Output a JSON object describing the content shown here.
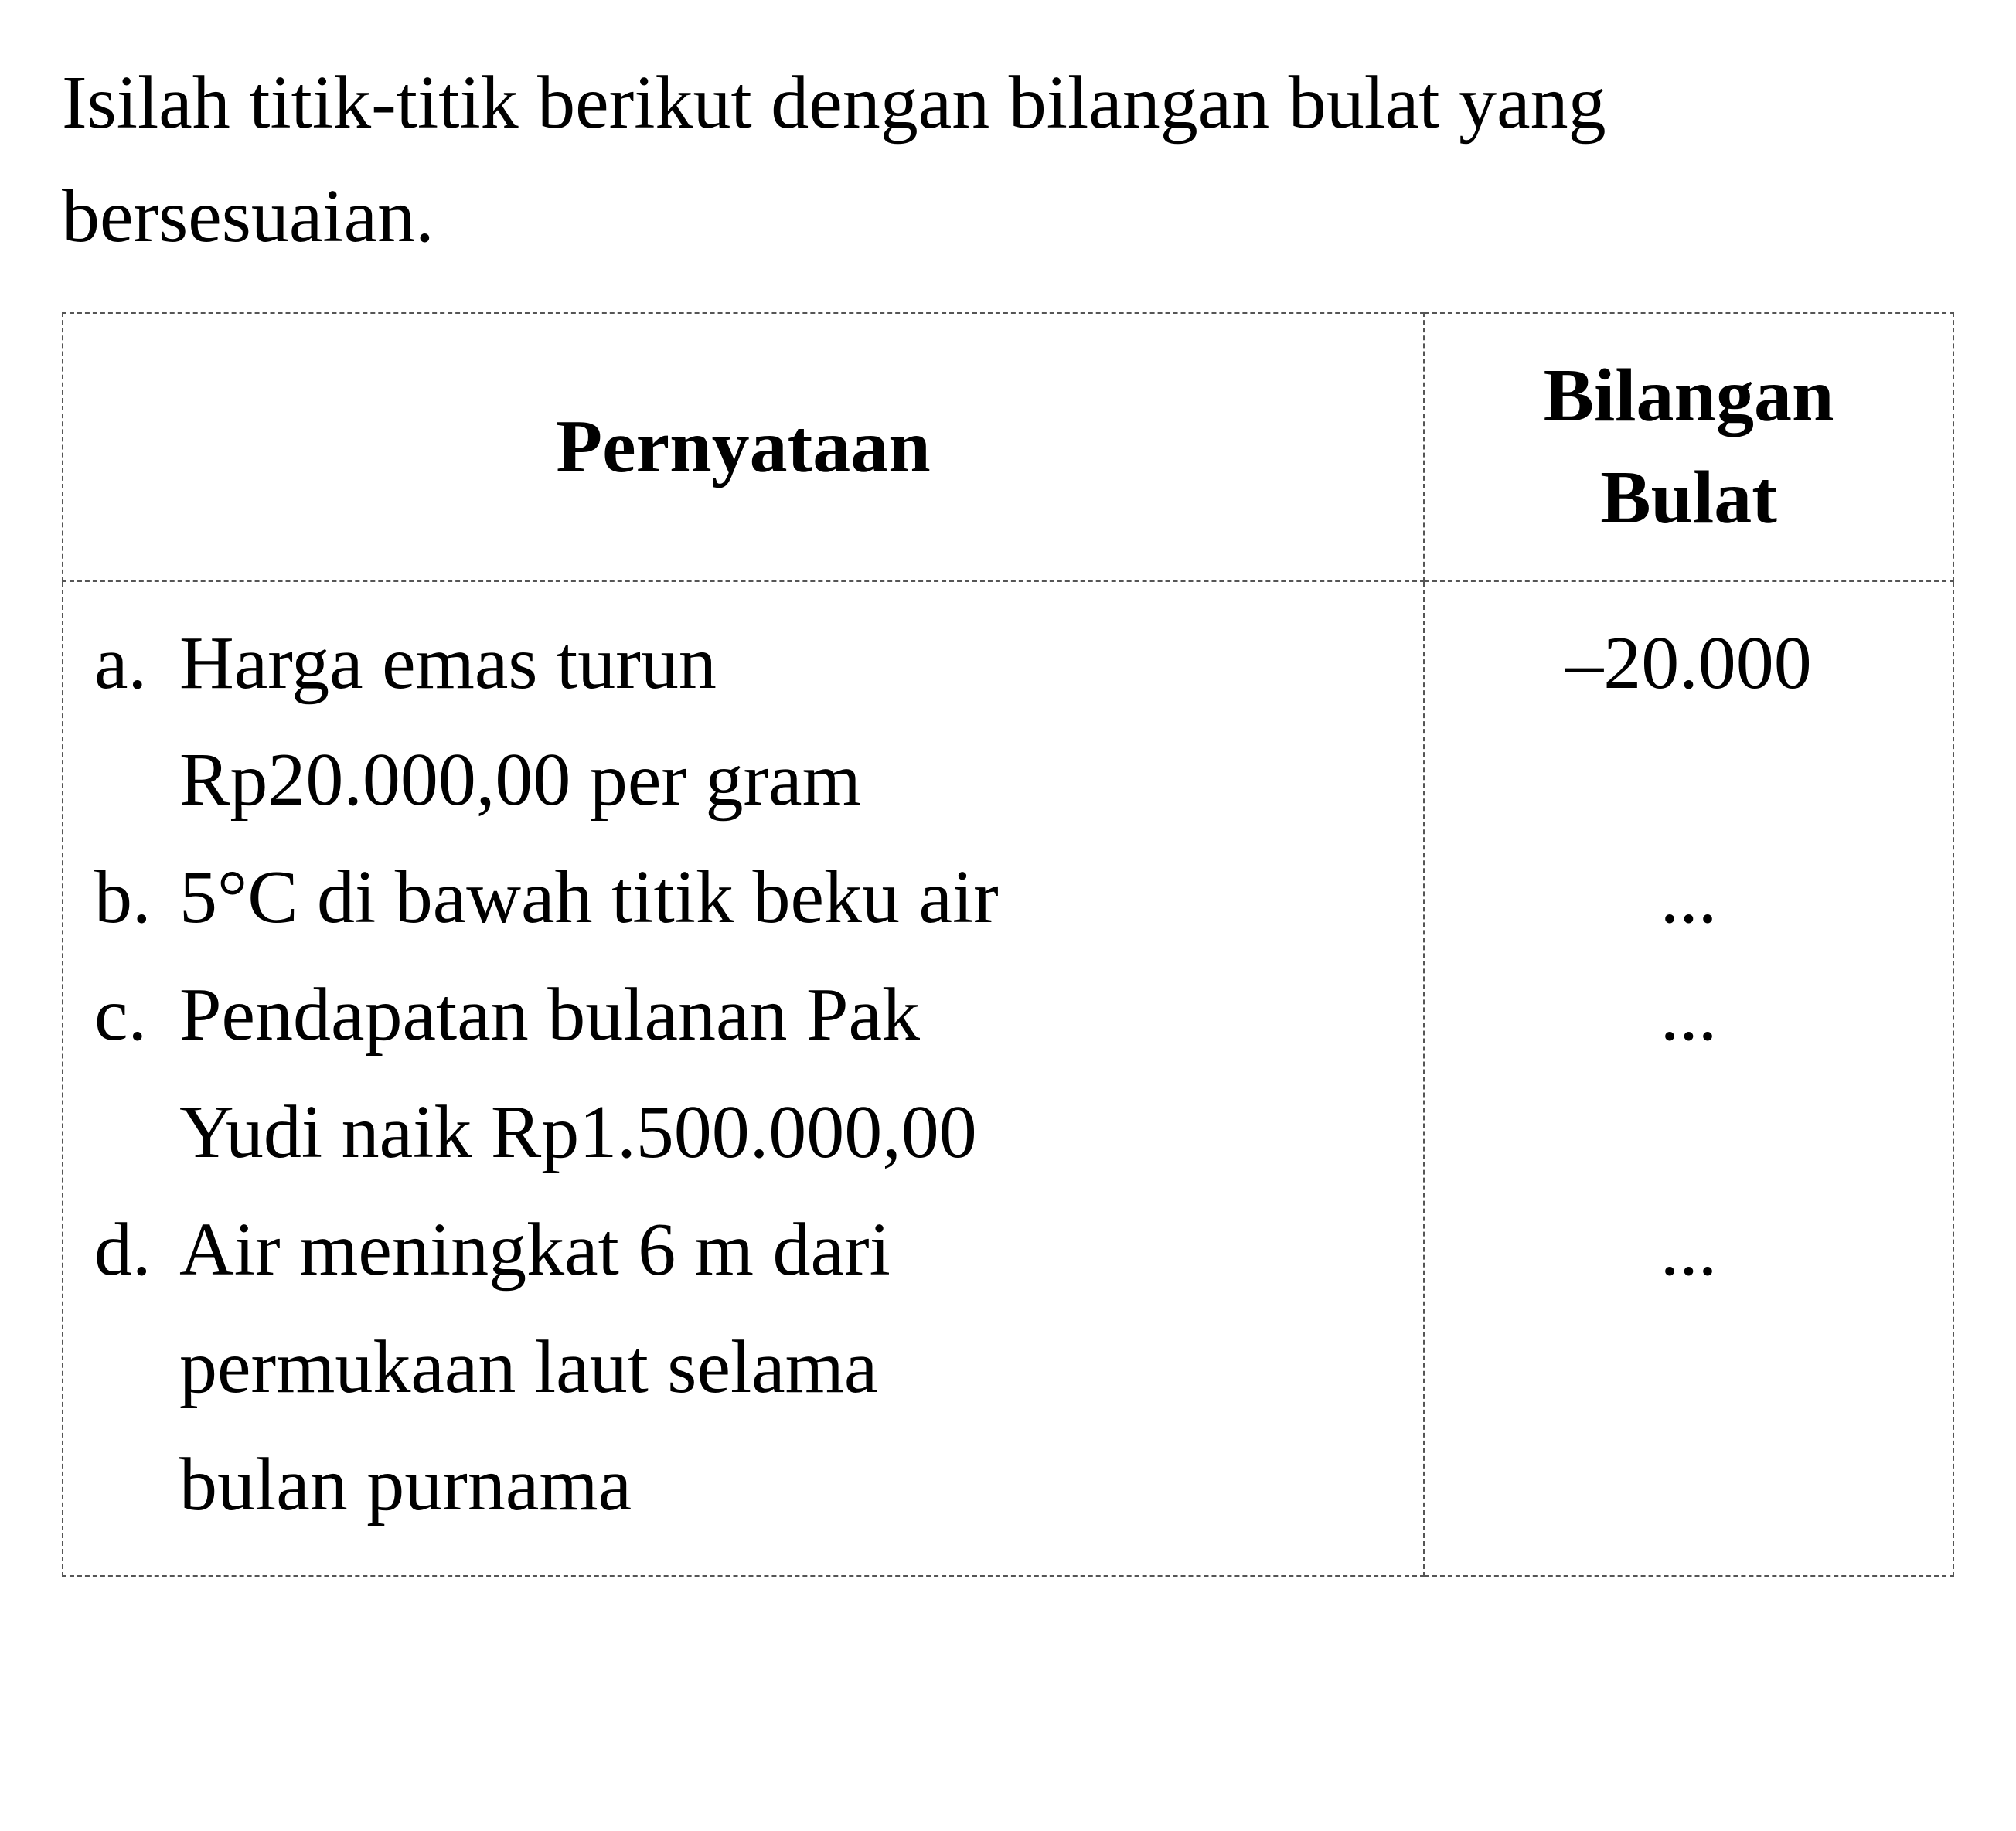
{
  "instruction": "Isilah titik-titik berikut dengan bilangan bulat yang bersesuaian.",
  "table": {
    "headers": {
      "pernyataan": "Pernyataan",
      "bilangan": "Bilangan Bulat"
    },
    "rows": [
      {
        "letter": "a.",
        "text_line1": "Harga emas turun",
        "text_line2": "Rp20.000,00 per gram",
        "value": "–20.000"
      },
      {
        "letter": "b.",
        "text_line1": "5°C di bawah titik beku air",
        "text_line2": "",
        "value": "..."
      },
      {
        "letter": "c.",
        "text_line1": "Pendapatan bulanan Pak",
        "text_line2": "Yudi naik Rp1.500.000,00",
        "value": "..."
      },
      {
        "letter": "d.",
        "text_line1": "Air meningkat 6 m dari",
        "text_line2": "permukaan laut selama",
        "text_line3": "bulan purnama",
        "value": "..."
      }
    ]
  },
  "style": {
    "background_color": "#ffffff",
    "text_color": "#000000",
    "border_color": "#555555",
    "border_style": "dashed",
    "instruction_fontsize": 98,
    "header_fontsize": 98,
    "body_fontsize": 98,
    "font_family": "Times New Roman"
  }
}
